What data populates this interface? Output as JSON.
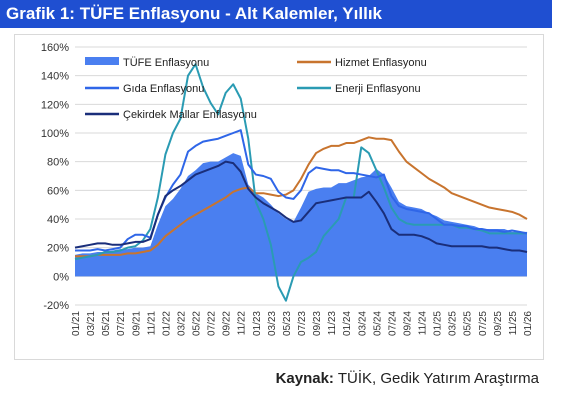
{
  "page": {
    "title": "Grafik 1: TÜFE Enflasyonu - Alt Kalemler, Yıllık",
    "source_label": "Kaynak:",
    "source_text": "TÜİK, Gedik Yatırım Araştırma"
  },
  "colors": {
    "title_bg": "#1f4fd1",
    "tufe": "#4a7ff0",
    "hizmet": "#c8742e",
    "gida": "#2f66e8",
    "enerji": "#2a9bb3",
    "cekirdek": "#1a2e7a",
    "grid": "#d9d9d9"
  },
  "chart_data": {
    "type": "area",
    "title": "",
    "xlabel": "",
    "ylabel": "",
    "ylim": [
      -20,
      160
    ],
    "yticks": [
      "160%",
      "140%",
      "120%",
      "100%",
      "80%",
      "60%",
      "40%",
      "20%",
      "0%",
      "-20%"
    ],
    "grid": "horizontal",
    "legend_placement": "top",
    "x": [
      "01/21",
      "02/21",
      "03/21",
      "04/21",
      "05/21",
      "06/21",
      "07/21",
      "08/21",
      "09/21",
      "10/21",
      "11/21",
      "12/21",
      "01/22",
      "02/22",
      "03/22",
      "04/22",
      "05/22",
      "06/22",
      "07/22",
      "08/22",
      "09/22",
      "10/22",
      "11/22",
      "12/22",
      "01/23",
      "02/23",
      "03/23",
      "04/23",
      "05/23",
      "06/23",
      "07/23",
      "08/23",
      "09/23",
      "10/23",
      "11/23",
      "12/23",
      "01/24",
      "02/24",
      "03/24",
      "04/24",
      "05/24",
      "06/24",
      "07/24",
      "08/24",
      "09/24",
      "10/24",
      "11/24",
      "12/24",
      "01/25",
      "02/25",
      "03/25",
      "04/25",
      "05/25",
      "06/25",
      "07/25",
      "08/25",
      "09/25",
      "10/25",
      "11/25",
      "12/25",
      "01/26"
    ],
    "x_tick_labels": [
      "01/21",
      "03/21",
      "05/21",
      "07/21",
      "09/21",
      "11/21",
      "01/22",
      "03/22",
      "05/22",
      "07/22",
      "09/22",
      "11/22",
      "01/23",
      "03/23",
      "05/23",
      "07/23",
      "09/23",
      "11/23",
      "01/24",
      "03/24",
      "05/24",
      "07/24",
      "09/24",
      "11/24",
      "01/25",
      "03/25",
      "05/25",
      "07/25",
      "09/25",
      "11/25",
      "01/26"
    ],
    "series": [
      {
        "name": "TÜFE Enflasyonu",
        "kind": "area",
        "values": [
          15,
          16,
          16,
          17,
          17,
          18,
          19,
          19,
          20,
          20,
          21,
          36,
          49,
          54,
          61,
          70,
          74,
          79,
          80,
          80,
          83,
          86,
          84,
          64,
          58,
          55,
          50,
          44,
          40,
          38,
          48,
          59,
          61,
          62,
          62,
          65,
          65,
          67,
          69,
          70,
          75,
          71,
          62,
          52,
          49,
          48,
          47,
          44,
          42,
          39,
          38,
          37,
          36,
          35,
          33,
          33,
          33,
          33,
          31,
          31,
          31
        ]
      },
      {
        "name": "Hizmet Enflasyonu",
        "kind": "line",
        "values": [
          14,
          14,
          14,
          15,
          15,
          15,
          15,
          16,
          16,
          17,
          18,
          22,
          28,
          32,
          36,
          40,
          43,
          46,
          49,
          52,
          55,
          59,
          61,
          62,
          58,
          58,
          57,
          56,
          57,
          60,
          68,
          78,
          86,
          89,
          91,
          91,
          93,
          93,
          95,
          97,
          96,
          96,
          95,
          87,
          80,
          76,
          72,
          68,
          65,
          62,
          58,
          56,
          54,
          52,
          50,
          48,
          47,
          46,
          45,
          43,
          40
        ]
      },
      {
        "name": "Gıda Enflasyonu",
        "kind": "line",
        "values": [
          18,
          18,
          18,
          19,
          18,
          19,
          20,
          26,
          29,
          29,
          27,
          43,
          55,
          64,
          71,
          87,
          91,
          94,
          95,
          96,
          98,
          100,
          102,
          78,
          71,
          70,
          68,
          59,
          55,
          54,
          60,
          72,
          76,
          75,
          74,
          74,
          72,
          72,
          71,
          70,
          69,
          71,
          56,
          49,
          47,
          46,
          45,
          44,
          40,
          36,
          36,
          35,
          35,
          33,
          33,
          32,
          32,
          31,
          32,
          31,
          30
        ]
      },
      {
        "name": "Enerji Enflasyonu",
        "kind": "line",
        "values": [
          12,
          13,
          14,
          15,
          17,
          17,
          18,
          20,
          21,
          25,
          33,
          55,
          85,
          100,
          110,
          140,
          148,
          132,
          121,
          113,
          128,
          134,
          124,
          96,
          52,
          40,
          22,
          -7,
          -17,
          0,
          10,
          13,
          17,
          28,
          34,
          40,
          55,
          55,
          90,
          86,
          74,
          62,
          48,
          40,
          37,
          36,
          36,
          36,
          36,
          36,
          36,
          34,
          34,
          33,
          32,
          30,
          30,
          30,
          30,
          30,
          30
        ]
      },
      {
        "name": "Çekirdek Mallar Enflasyonu",
        "kind": "line",
        "values": [
          20,
          21,
          22,
          23,
          23,
          22,
          22,
          23,
          24,
          24,
          26,
          43,
          56,
          60,
          63,
          67,
          71,
          73,
          75,
          77,
          80,
          79,
          73,
          61,
          55,
          51,
          48,
          45,
          41,
          38,
          39,
          45,
          51,
          52,
          53,
          54,
          55,
          55,
          55,
          59,
          52,
          44,
          33,
          29,
          29,
          29,
          28,
          26,
          23,
          22,
          21,
          21,
          21,
          21,
          21,
          20,
          20,
          19,
          18,
          18,
          17
        ]
      }
    ]
  }
}
